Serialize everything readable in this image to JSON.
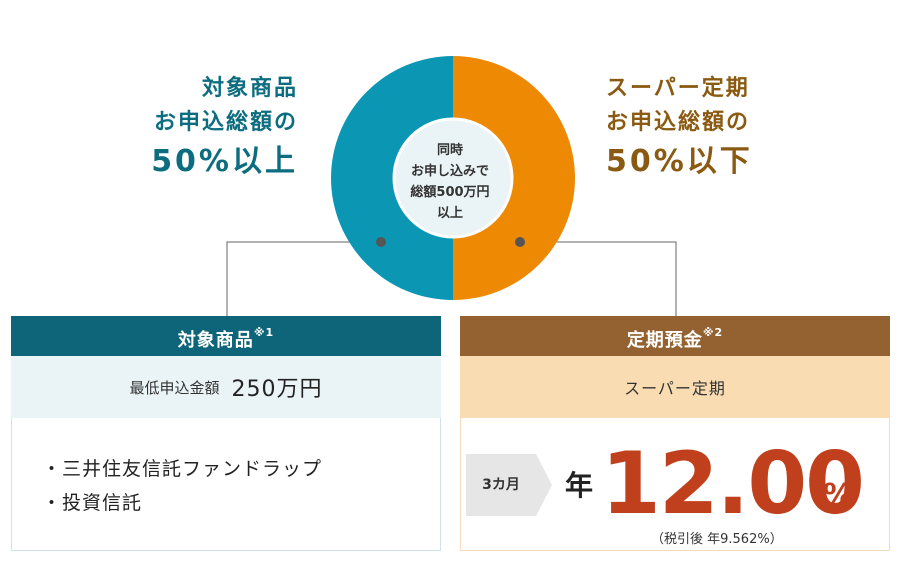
{
  "left_heading": {
    "line1": "対象商品",
    "line2": "お申込総額の",
    "line3": "50%以上"
  },
  "right_heading": {
    "line1": "スーパー定期",
    "line2": "お申込総額の",
    "line3": "50%以下"
  },
  "center": {
    "line1": "同時",
    "line2": "お申し込みで",
    "line3": "総額500万円",
    "line4": "以上"
  },
  "donut_split": {
    "target_products_share": 50,
    "super_teiki_share": 50
  },
  "colors": {
    "teal": "#0b96b4",
    "orange": "#ee8903",
    "teal_header": "#0e6478",
    "brown_header": "#946230",
    "rate_red": "#c0401e"
  },
  "left_box": {
    "title": "対象商品",
    "note_mark": "※1",
    "min_label": "最低申込金額",
    "min_value": "250万円",
    "items": [
      "・三井住友信託ファンドラップ",
      "・投資信託"
    ]
  },
  "right_box": {
    "title": "定期預金",
    "note_mark": "※2",
    "plan": "スーパー定期",
    "term": "3カ月",
    "per_year": "年",
    "rate": "12.00",
    "percent": "%",
    "after_tax": "（税引後 年9.562%）"
  }
}
